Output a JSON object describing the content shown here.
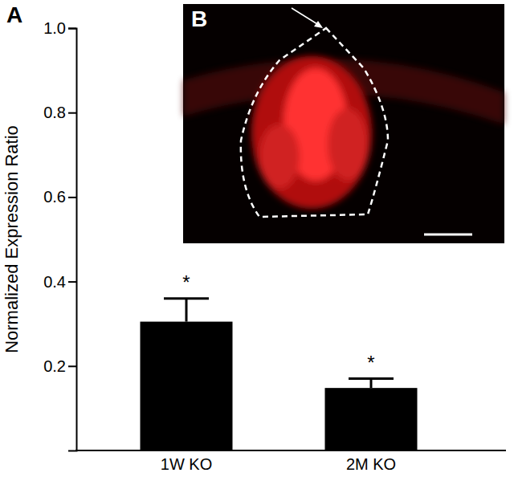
{
  "chart_data": {
    "type": "bar",
    "y_label": "Normalized Expression Ratio",
    "categories": [
      "1W KO",
      "2M KO"
    ],
    "values": [
      0.305,
      0.148
    ],
    "errors": [
      0.055,
      0.022
    ],
    "significance": [
      "*",
      "*"
    ],
    "panel_labels": [
      "A",
      "B"
    ],
    "color": "#000000",
    "ylim": [
      0,
      1.0
    ],
    "yticks": [
      0.2,
      0.4,
      0.6,
      0.8,
      {
        "value": 1.0,
        "label": "1.0"
      }
    ],
    "grid": false
  }
}
